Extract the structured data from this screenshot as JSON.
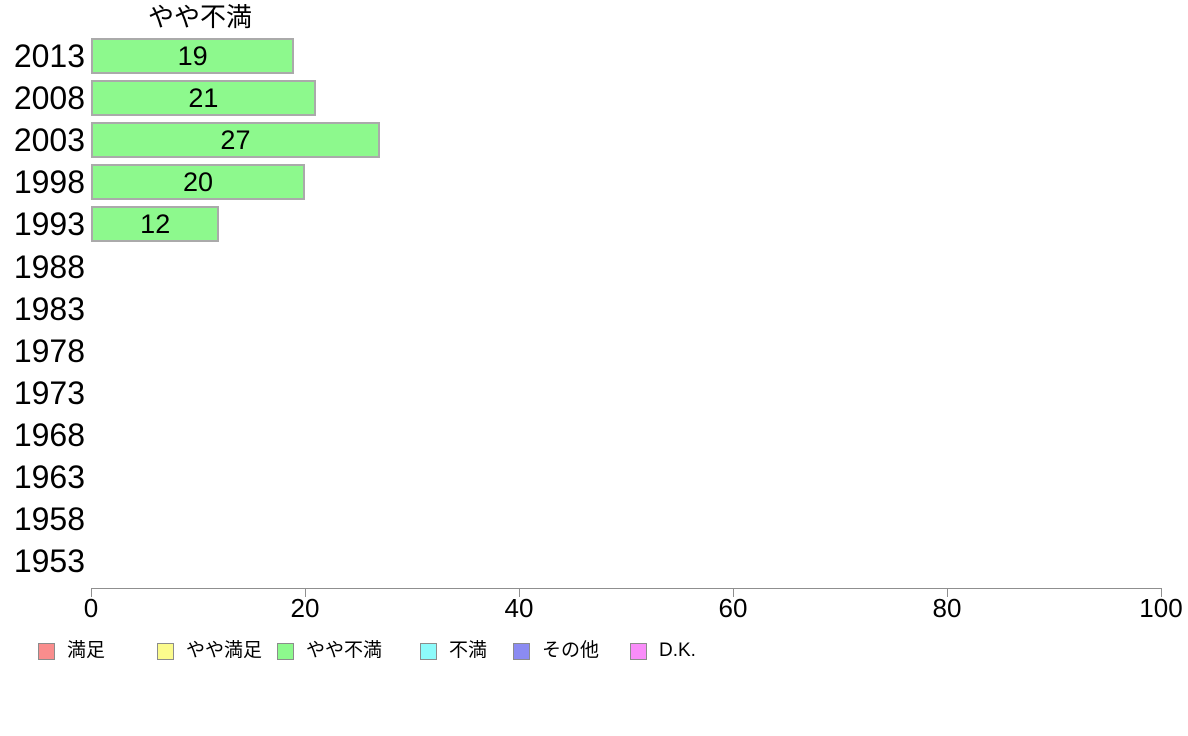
{
  "chart_data": {
    "type": "bar",
    "orientation": "horizontal",
    "title": "やや不満",
    "categories": [
      "2013",
      "2008",
      "2003",
      "1998",
      "1993",
      "1988",
      "1983",
      "1978",
      "1973",
      "1968",
      "1963",
      "1958",
      "1953"
    ],
    "series": [
      {
        "name": "やや不満",
        "values": [
          19,
          21,
          27,
          20,
          12,
          null,
          null,
          null,
          null,
          null,
          null,
          null,
          null
        ]
      }
    ],
    "xlabel": "",
    "ylabel": "",
    "xlim": [
      0,
      100
    ],
    "x_ticks": [
      0,
      20,
      40,
      60,
      80,
      100
    ],
    "x_tick_labels": [
      "0",
      "20",
      "40",
      "60",
      "80",
      "100"
    ],
    "grid": false,
    "legend_position": "bottom",
    "colors": {
      "bar_fill": "#8df98d",
      "bar_border": "#aaaaaa",
      "axis": "#8f8f8f",
      "text": "#000000",
      "background": "#ffffff"
    },
    "legend": [
      {
        "label": "満足",
        "color": "#f98d8d"
      },
      {
        "label": "やや満足",
        "color": "#fbfb8d"
      },
      {
        "label": "やや不満",
        "color": "#8df98d"
      },
      {
        "label": "不満",
        "color": "#8dfbfb"
      },
      {
        "label": "その他",
        "color": "#8b8bf2"
      },
      {
        "label": "D.K.",
        "color": "#f98df9"
      }
    ]
  }
}
